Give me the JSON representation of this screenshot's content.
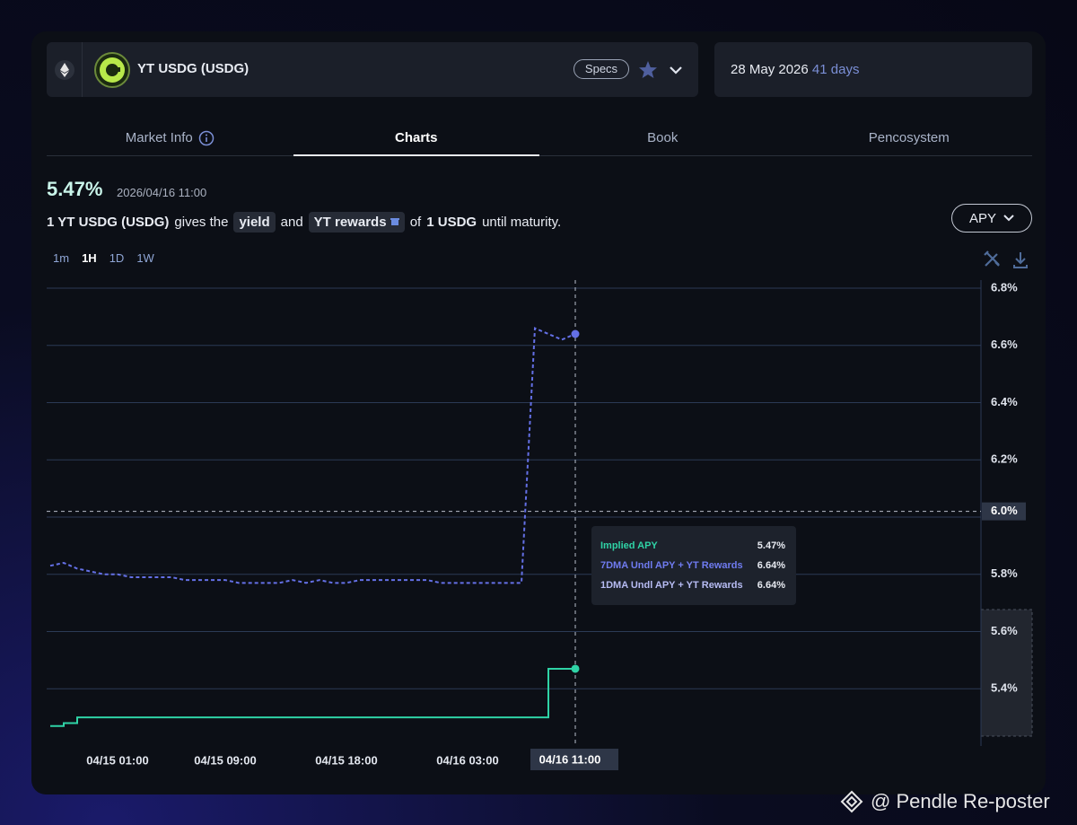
{
  "header": {
    "market_name": "YT USDG (USDG)",
    "specs": "Specs",
    "maturity_date": "28 May 2026",
    "days_left": "41 days"
  },
  "tabs": [
    "Market Info",
    "Charts",
    "Book",
    "Pencosystem"
  ],
  "summary": {
    "implied_apy": "5.47%",
    "timestamp": "2026/04/16 11:00",
    "description": [
      "1 YT USDG (USDG)",
      "gives the",
      "yield",
      "and",
      "YT rewards",
      "of",
      "1 USDG",
      "until maturity."
    ]
  },
  "apy_selector": "APY",
  "timeframes": [
    "1m",
    "1H",
    "1D",
    "1W"
  ],
  "chart_data": {
    "type": "line",
    "categories": [
      null,
      null,
      null,
      null,
      null,
      "04/15 01:00",
      null,
      null,
      null,
      null,
      null,
      null,
      null,
      "04/15 09:00",
      null,
      null,
      null,
      null,
      null,
      null,
      null,
      null,
      "04/15 18:00",
      null,
      null,
      null,
      null,
      null,
      null,
      null,
      null,
      "04/16 03:00",
      null,
      null,
      null,
      null,
      null,
      null,
      null,
      "04/16 11:00"
    ],
    "series": [
      {
        "name": "Implied APY",
        "color": "#2fd3a6",
        "line_style": "step",
        "values": [
          5.27,
          5.28,
          5.3,
          5.3,
          5.3,
          5.3,
          5.3,
          5.3,
          5.3,
          5.3,
          5.3,
          5.3,
          5.3,
          5.3,
          5.3,
          5.3,
          5.3,
          5.3,
          5.3,
          5.3,
          5.3,
          5.3,
          5.3,
          5.3,
          5.3,
          5.3,
          5.3,
          5.3,
          5.3,
          5.3,
          5.3,
          5.3,
          5.3,
          5.3,
          5.3,
          5.3,
          5.3,
          5.47,
          5.47,
          5.47
        ]
      },
      {
        "name": "7DMA Undl APY + YT Rewards",
        "color": "#6470e6",
        "line_style": "dashed",
        "values": [
          5.83,
          5.84,
          5.82,
          5.81,
          5.8,
          5.8,
          5.79,
          5.79,
          5.79,
          5.79,
          5.78,
          5.78,
          5.78,
          5.78,
          5.77,
          5.77,
          5.77,
          5.77,
          5.78,
          5.77,
          5.78,
          5.77,
          5.77,
          5.78,
          5.78,
          5.78,
          5.78,
          5.78,
          5.78,
          5.77,
          5.77,
          5.77,
          5.77,
          5.77,
          5.77,
          5.77,
          6.66,
          6.64,
          6.62,
          6.64
        ]
      }
    ],
    "ylim": [
      5.2,
      6.8
    ],
    "yticks": [
      {
        "value": 5.4,
        "label": "5.4%"
      },
      {
        "value": 5.6,
        "label": "5.6%"
      },
      {
        "value": 5.8,
        "label": "5.8%"
      },
      {
        "value": 6.0,
        "label": "6.0%"
      },
      {
        "value": 6.2,
        "label": "6.2%"
      },
      {
        "value": 6.4,
        "label": "6.4%"
      },
      {
        "value": 6.6,
        "label": "6.6%"
      },
      {
        "value": 6.8,
        "label": "6.8%"
      }
    ],
    "grid": true,
    "hover_index": 39,
    "crosshair_y": {
      "value": 6.02,
      "label": "6.0%"
    },
    "tooltip": [
      {
        "name": "Implied APY",
        "value": "5.47%",
        "color": "#2fd3a6"
      },
      {
        "name": "7DMA Undl APY + YT Rewards",
        "value": "6.64%",
        "color": "#6f7bf0"
      },
      {
        "name": "1DMA Undl APY + YT Rewards",
        "value": "6.64%",
        "color": "#b7bcf3"
      }
    ]
  },
  "watermark": "@ Pendle Re-poster"
}
